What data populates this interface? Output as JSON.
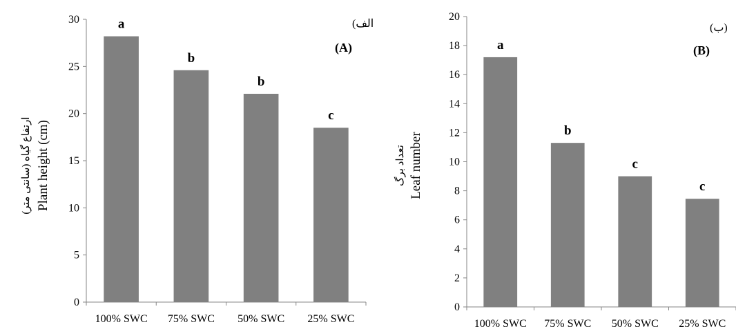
{
  "bar_color": "#808080",
  "axis_color": "#868686",
  "chart_data": [
    {
      "type": "bar",
      "panel_label": "(A)",
      "panel_label_fa": "(الف)",
      "ylabel": "Plant height (cm)",
      "ylabel_fa": "ارتفاع گیاه (سانتی متر)",
      "categories": [
        "100% SWC",
        "75% SWC",
        "50% SWC",
        "25% SWC"
      ],
      "values": [
        28.2,
        24.6,
        22.1,
        18.5
      ],
      "significance": [
        "a",
        "b",
        "b",
        "c"
      ],
      "ylim": [
        0,
        30
      ],
      "yticks": [
        0,
        5,
        10,
        15,
        20,
        25,
        30
      ],
      "grid": false
    },
    {
      "type": "bar",
      "panel_label": "(B)",
      "panel_label_fa": "(ب)",
      "ylabel": "Leaf number",
      "ylabel_fa": "تعداد برگ",
      "categories": [
        "100% SWC",
        "75% SWC",
        "50% SWC",
        "25% SWC"
      ],
      "values": [
        17.2,
        11.3,
        9.0,
        7.45
      ],
      "significance": [
        "a",
        "b",
        "c",
        "c"
      ],
      "ylim": [
        0,
        20
      ],
      "yticks": [
        0,
        2,
        4,
        6,
        8,
        10,
        12,
        14,
        16,
        18,
        20
      ],
      "grid": false
    }
  ]
}
